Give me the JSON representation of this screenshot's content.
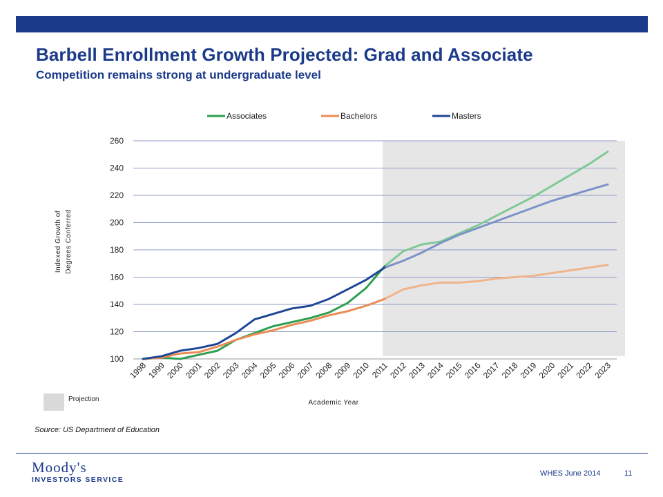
{
  "header": {
    "title": "Barbell Enrollment Growth Projected:  Grad and Associate",
    "subtitle": "Competition remains strong at undergraduate level"
  },
  "chart_data": {
    "type": "line",
    "ylabel_line1": "Indexed Growth of",
    "ylabel_line2": "Degrees Conferred",
    "xlabel": "Academic Year",
    "ylim": [
      100,
      260
    ],
    "yticks": [
      100,
      120,
      140,
      160,
      180,
      200,
      220,
      240,
      260
    ],
    "grid": true,
    "legend_position": "top",
    "projection_start": "2011",
    "projection_label": "Projection",
    "projection_color": "#e6e6e6",
    "x": [
      "1998",
      "1999",
      "2000",
      "2001",
      "2002",
      "2003",
      "2004",
      "2005",
      "2006",
      "2007",
      "2008",
      "2009",
      "2010",
      "2011",
      "2012",
      "2013",
      "2014",
      "2015",
      "2016",
      "2017",
      "2018",
      "2019",
      "2020",
      "2021",
      "2022",
      "2023"
    ],
    "series": [
      {
        "name": "Associates",
        "color": "#2e9e4f",
        "projected_color": "#80c995",
        "values": [
          100,
          101,
          100,
          103,
          106,
          114,
          119,
          124,
          127,
          130,
          134,
          141,
          152,
          168,
          179,
          184,
          186,
          192,
          198,
          205,
          212,
          219,
          227,
          235,
          243,
          252
        ]
      },
      {
        "name": "Bachelors",
        "color": "#ec8c54",
        "projected_color": "#f0b48b",
        "values": [
          100,
          101,
          104,
          105,
          109,
          114,
          118,
          121,
          125,
          128,
          132,
          135,
          139,
          144,
          151,
          154,
          156,
          156,
          157,
          159,
          160,
          161,
          163,
          165,
          167,
          169
        ]
      },
      {
        "name": "Masters",
        "color": "#1e4596",
        "projected_color": "#7c92c8",
        "values": [
          100,
          102,
          106,
          108,
          111,
          119,
          129,
          133,
          137,
          139,
          144,
          151,
          158,
          167,
          172,
          178,
          185,
          191,
          196,
          201,
          206,
          211,
          216,
          220,
          224,
          228
        ]
      }
    ]
  },
  "source": "Source: US Department of Education",
  "footer": {
    "logo_line1": "Moody's",
    "logo_line2": "INVESTORS SERVICE",
    "text": "WHES June 2014",
    "page_number": "11"
  }
}
